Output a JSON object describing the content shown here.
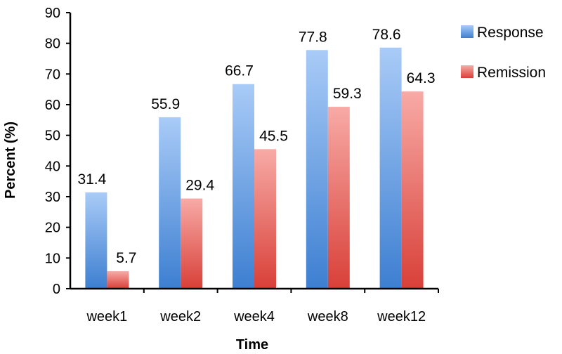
{
  "chart_data": {
    "type": "bar",
    "categories": [
      "week1",
      "week2",
      "week4",
      "week8",
      "week12"
    ],
    "series": [
      {
        "name": "Response",
        "values": [
          31.4,
          55.9,
          66.7,
          77.8,
          78.6
        ]
      },
      {
        "name": "Remission",
        "values": [
          5.7,
          29.4,
          45.5,
          59.3,
          64.3
        ]
      }
    ],
    "data_labels": [
      [
        "31.4",
        "55.9",
        "66.7",
        "77.8",
        "78.6"
      ],
      [
        "5.7",
        "29.4",
        "45.5",
        "59.3",
        "64.3"
      ]
    ],
    "title": "",
    "xlabel": "Time",
    "ylabel": "Percent (%)",
    "ylim": [
      0,
      90
    ],
    "yticks": [
      0,
      10,
      20,
      30,
      40,
      50,
      60,
      70,
      80,
      90
    ],
    "grid": false,
    "legend": "right",
    "colors": {
      "Response": {
        "top": "#a9cbf7",
        "bottom": "#3d7fd1"
      },
      "Remission": {
        "top": "#f8aaa6",
        "bottom": "#d84038"
      }
    }
  }
}
